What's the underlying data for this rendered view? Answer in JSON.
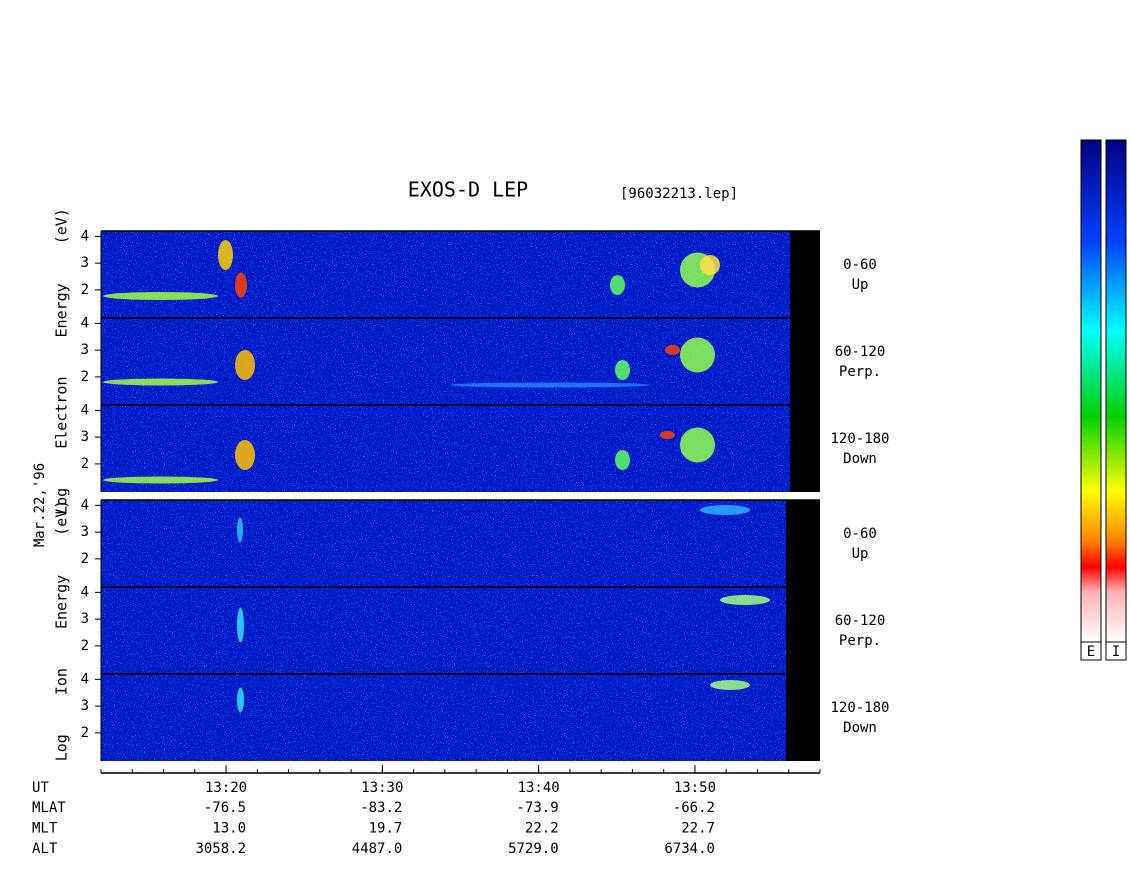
{
  "chart_data": {
    "type": "spectrogram",
    "title": "EXOS-D LEP",
    "file": "[96032213.lep]",
    "date": "Mar.22,'96",
    "ylim": [
      0.95,
      4.2
    ],
    "yticks": [
      2,
      3,
      4
    ],
    "groups": [
      {
        "ylabel": "Log Electron Energy (eV)",
        "panels": [
          {
            "range": "0-60",
            "direction": "Up"
          },
          {
            "range": "60-120",
            "direction": "Perp."
          },
          {
            "range": "120-180",
            "direction": "Down"
          }
        ]
      },
      {
        "ylabel": "Log Ion Energy (eV)",
        "panels": [
          {
            "range": "0-60",
            "direction": "Up"
          },
          {
            "range": "60-120",
            "direction": "Perp."
          },
          {
            "range": "120-180",
            "direction": "Down"
          }
        ]
      }
    ],
    "xlim": [
      792,
      838
    ],
    "xticks": [
      {
        "value": 800,
        "label": "13:20"
      },
      {
        "value": 810,
        "label": "13:30"
      },
      {
        "value": 820,
        "label": "13:40"
      },
      {
        "value": 830,
        "label": "13:50"
      }
    ],
    "x_label": "UT",
    "rows": [
      {
        "label": "MLAT",
        "values": [
          "-76.5",
          "-83.2",
          "-73.9",
          "-66.2"
        ]
      },
      {
        "label": "MLT",
        "values": [
          "13.0",
          "19.7",
          "22.2",
          "22.7"
        ]
      },
      {
        "label": "ALT",
        "values": [
          "3058.2",
          "4487.0",
          "5729.0",
          "6734.0"
        ]
      }
    ],
    "colorbars": [
      "E",
      "I"
    ]
  }
}
